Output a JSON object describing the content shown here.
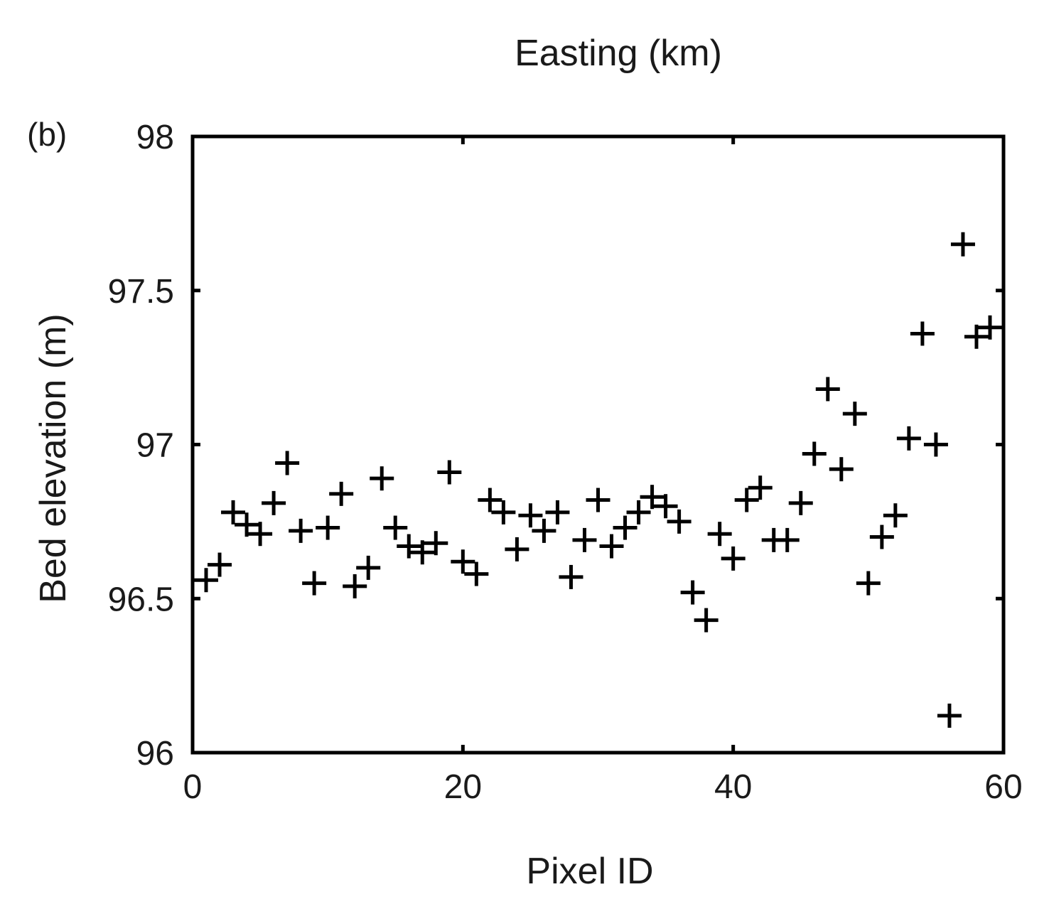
{
  "chart_data": {
    "type": "scatter",
    "panel_label": "(b)",
    "top_label": "Easting (km)",
    "xlabel": "Pixel ID",
    "ylabel": "Bed elevation (m)",
    "xlim": [
      0,
      60
    ],
    "ylim": [
      96,
      98
    ],
    "xticks": [
      "0",
      "20",
      "40",
      "60"
    ],
    "yticks": [
      "96",
      "96.5",
      "97",
      "97.5",
      "98"
    ],
    "marker": "plus",
    "color": "#000000",
    "grid": false,
    "x": [
      1,
      2,
      3,
      4,
      5,
      6,
      7,
      8,
      9,
      10,
      11,
      12,
      13,
      14,
      15,
      16,
      17,
      18,
      19,
      20,
      21,
      22,
      23,
      24,
      25,
      26,
      27,
      28,
      29,
      30,
      31,
      32,
      33,
      34,
      35,
      36,
      37,
      38,
      39,
      40,
      41,
      42,
      43,
      44,
      45,
      46,
      47,
      48,
      49,
      50,
      51,
      52,
      53,
      54,
      55,
      56,
      57,
      58,
      59
    ],
    "y": [
      96.56,
      96.61,
      96.78,
      96.74,
      96.71,
      96.81,
      96.94,
      96.72,
      96.55,
      96.73,
      96.84,
      96.54,
      96.6,
      96.89,
      96.73,
      96.67,
      96.65,
      96.68,
      96.91,
      96.62,
      96.58,
      96.82,
      96.78,
      96.66,
      96.77,
      96.72,
      96.78,
      96.57,
      96.69,
      96.82,
      96.67,
      96.73,
      96.78,
      96.83,
      96.8,
      96.75,
      96.52,
      96.43,
      96.71,
      96.63,
      96.82,
      96.86,
      96.69,
      96.69,
      96.81,
      96.97,
      97.18,
      96.92,
      97.1,
      96.55,
      96.7,
      96.77,
      97.02,
      97.36,
      97.0,
      96.12,
      97.65,
      97.35,
      97.38
    ]
  }
}
